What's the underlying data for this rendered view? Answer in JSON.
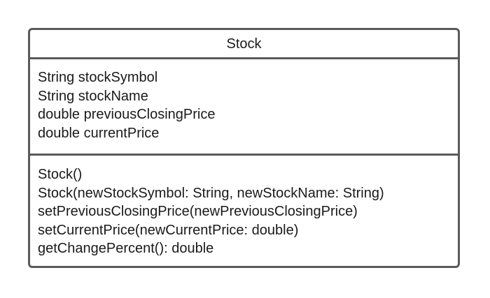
{
  "class": {
    "name": "Stock",
    "attributes": [
      "String stockSymbol",
      "String stockName",
      "double previousClosingPrice",
      "double currentPrice"
    ],
    "methods": [
      "Stock()",
      "Stock(newStockSymbol: String, newStockName: String)",
      "setPreviousClosingPrice(newPreviousClosingPrice)",
      "setCurrentPrice(newCurrentPrice: double)",
      "getChangePercent(): double"
    ]
  },
  "colors": {
    "border": "#5a5a5a",
    "text": "#1a1a1a",
    "background": "#ffffff"
  }
}
